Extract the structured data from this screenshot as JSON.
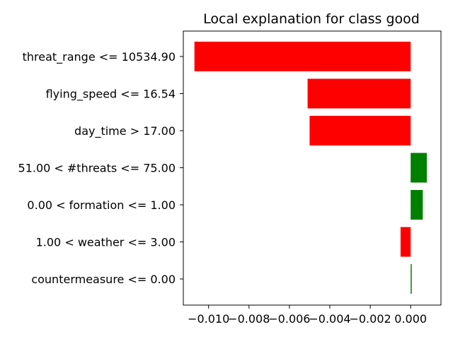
{
  "chart_data": {
    "type": "bar",
    "orientation": "horizontal",
    "title": "Local explanation for class good",
    "xlabel": "",
    "ylabel": "",
    "categories": [
      "threat_range <= 10534.90",
      "flying_speed <= 16.54",
      "day_time > 17.00",
      "51.00 < #threats <= 75.00",
      "0.00 < formation <= 1.00",
      "1.00 < weather <= 3.00",
      "countermeasure <= 0.00"
    ],
    "values": [
      -0.0107,
      -0.0051,
      -0.005,
      0.0008,
      0.0006,
      -0.0005,
      5e-05
    ],
    "xlim": [
      -0.01125,
      0.0015
    ],
    "xticks": [
      -0.01,
      -0.008,
      -0.006,
      -0.004,
      -0.002,
      0.0
    ],
    "xtick_labels": [
      "−0.010",
      "−0.008",
      "−0.006",
      "−0.004",
      "−0.002",
      "0.000"
    ],
    "colors": {
      "positive": "#008000",
      "negative": "#ff0000"
    },
    "grid": false
  }
}
